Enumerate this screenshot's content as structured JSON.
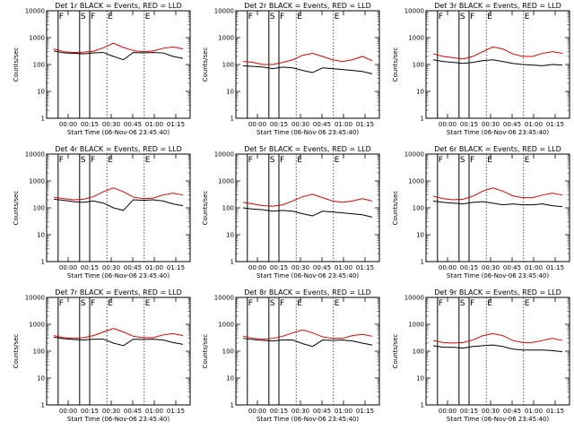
{
  "panels": [
    {
      "title": "Det 1r BLACK = Events, RED = LLD",
      "red": [
        380,
        300,
        280,
        290,
        310,
        420,
        620,
        430,
        330,
        300,
        320,
        400,
        450,
        380
      ],
      "black": [
        320,
        270,
        260,
        250,
        270,
        280,
        200,
        150,
        280,
        270,
        280,
        270,
        200,
        170
      ],
      "markers": [
        {
          "x": -5,
          "type": "S"
        },
        {
          "x": 8,
          "type": "F"
        },
        {
          "x": 23,
          "type": "S"
        },
        {
          "x": 30,
          "type": "F"
        },
        {
          "x": 42,
          "type": "E"
        },
        {
          "x": 68,
          "type": "E"
        }
      ]
    },
    {
      "title": "Det 2r BLACK = Events, RED = LLD",
      "red": [
        130,
        120,
        100,
        100,
        120,
        150,
        220,
        260,
        200,
        150,
        130,
        150,
        200,
        140
      ],
      "black": [
        90,
        85,
        80,
        70,
        80,
        75,
        60,
        50,
        75,
        70,
        65,
        60,
        55,
        45
      ],
      "markers": [
        {
          "x": -5,
          "type": "S"
        },
        {
          "x": 8,
          "type": "F"
        },
        {
          "x": 23,
          "type": "S"
        },
        {
          "x": 30,
          "type": "F"
        },
        {
          "x": 42,
          "type": "E"
        },
        {
          "x": 68,
          "type": "E"
        }
      ]
    },
    {
      "title": "Det 3r BLACK = Events, RED = LLD",
      "red": [
        250,
        200,
        180,
        160,
        200,
        300,
        450,
        380,
        250,
        200,
        200,
        260,
        300,
        260
      ],
      "black": [
        150,
        130,
        120,
        110,
        120,
        140,
        150,
        130,
        110,
        100,
        95,
        90,
        100,
        95
      ],
      "markers": [
        {
          "x": -5,
          "type": "S"
        },
        {
          "x": 8,
          "type": "F"
        },
        {
          "x": 23,
          "type": "S"
        },
        {
          "x": 30,
          "type": "F"
        },
        {
          "x": 42,
          "type": "E"
        },
        {
          "x": 68,
          "type": "E"
        }
      ]
    },
    {
      "title": "Det 4r BLACK = Events, RED = LLD",
      "red": [
        250,
        220,
        200,
        210,
        260,
        400,
        550,
        400,
        250,
        220,
        230,
        300,
        350,
        300
      ],
      "black": [
        210,
        190,
        170,
        160,
        180,
        150,
        100,
        80,
        200,
        190,
        200,
        180,
        140,
        120
      ],
      "markers": [
        {
          "x": -5,
          "type": "S"
        },
        {
          "x": 8,
          "type": "F"
        },
        {
          "x": 23,
          "type": "S"
        },
        {
          "x": 30,
          "type": "F"
        },
        {
          "x": 42,
          "type": "E"
        },
        {
          "x": 68,
          "type": "E"
        }
      ]
    },
    {
      "title": "Det 5r BLACK = Events, RED = LLD",
      "red": [
        160,
        140,
        120,
        115,
        130,
        180,
        260,
        320,
        240,
        180,
        160,
        180,
        220,
        180
      ],
      "black": [
        100,
        90,
        85,
        75,
        80,
        75,
        60,
        50,
        75,
        70,
        65,
        60,
        55,
        45
      ],
      "markers": [
        {
          "x": -5,
          "type": "S"
        },
        {
          "x": 8,
          "type": "F"
        },
        {
          "x": 23,
          "type": "S"
        },
        {
          "x": 30,
          "type": "F"
        },
        {
          "x": 42,
          "type": "E"
        },
        {
          "x": 68,
          "type": "E"
        }
      ]
    },
    {
      "title": "Det 6r BLACK = Events, RED = LLD",
      "red": [
        270,
        220,
        200,
        210,
        270,
        420,
        550,
        420,
        280,
        240,
        240,
        300,
        350,
        300
      ],
      "black": [
        180,
        160,
        150,
        140,
        160,
        170,
        150,
        130,
        140,
        130,
        130,
        140,
        120,
        110
      ],
      "markers": [
        {
          "x": -5,
          "type": "S"
        },
        {
          "x": 8,
          "type": "F"
        },
        {
          "x": 23,
          "type": "S"
        },
        {
          "x": 30,
          "type": "F"
        },
        {
          "x": 42,
          "type": "E"
        },
        {
          "x": 68,
          "type": "E"
        }
      ]
    },
    {
      "title": "Det 7r BLACK = Events, RED = LLD",
      "red": [
        380,
        320,
        300,
        320,
        380,
        520,
        700,
        520,
        360,
        320,
        320,
        400,
        450,
        380
      ],
      "black": [
        330,
        290,
        270,
        260,
        280,
        280,
        200,
        160,
        280,
        270,
        280,
        260,
        210,
        180
      ],
      "markers": [
        {
          "x": -5,
          "type": "S"
        },
        {
          "x": 8,
          "type": "F"
        },
        {
          "x": 23,
          "type": "S"
        },
        {
          "x": 30,
          "type": "F"
        },
        {
          "x": 42,
          "type": "E"
        },
        {
          "x": 68,
          "type": "E"
        }
      ]
    },
    {
      "title": "Det 8r BLACK = Events, RED = LLD",
      "red": [
        360,
        300,
        280,
        300,
        360,
        480,
        620,
        480,
        340,
        300,
        300,
        380,
        420,
        360
      ],
      "black": [
        300,
        270,
        250,
        240,
        260,
        260,
        190,
        150,
        260,
        250,
        260,
        240,
        200,
        170
      ],
      "markers": [
        {
          "x": -5,
          "type": "S"
        },
        {
          "x": 8,
          "type": "F"
        },
        {
          "x": 23,
          "type": "S"
        },
        {
          "x": 30,
          "type": "F"
        },
        {
          "x": 42,
          "type": "E"
        },
        {
          "x": 68,
          "type": "E"
        }
      ]
    },
    {
      "title": "Det 9r BLACK = Events, RED = LLD",
      "red": [
        250,
        210,
        200,
        210,
        260,
        380,
        450,
        380,
        250,
        210,
        210,
        250,
        300,
        250
      ],
      "black": [
        160,
        140,
        140,
        130,
        150,
        160,
        170,
        150,
        120,
        110,
        110,
        110,
        105,
        95
      ],
      "markers": [
        {
          "x": -5,
          "type": "S"
        },
        {
          "x": 8,
          "type": "F"
        },
        {
          "x": 23,
          "type": "S"
        },
        {
          "x": 30,
          "type": "F"
        },
        {
          "x": 42,
          "type": "E"
        },
        {
          "x": 68,
          "type": "E"
        }
      ]
    }
  ],
  "axes": {
    "ylabel": "Counts/sec",
    "xlabel": "Start Time (06-Nov-06 23:45:40)",
    "yticks": [
      {
        "v": 1,
        "label": "1"
      },
      {
        "v": 10,
        "label": "10"
      },
      {
        "v": 100,
        "label": "100"
      },
      {
        "v": 1000,
        "label": "1000"
      },
      {
        "v": 10000,
        "label": "10000"
      }
    ],
    "xticks": [
      {
        "v": 15,
        "label": "00:00"
      },
      {
        "v": 30,
        "label": "00:15"
      },
      {
        "v": 45,
        "label": "00:30"
      },
      {
        "v": 60,
        "label": "00:45"
      },
      {
        "v": 75,
        "label": "01:00"
      },
      {
        "v": 90,
        "label": "01:15"
      }
    ],
    "xrange": [
      0,
      100
    ],
    "yrange": [
      1,
      10000
    ]
  },
  "chart_data": [
    {
      "type": "line",
      "title": "Det 1r BLACK = Events, RED = LLD",
      "xlabel": "Start Time (06-Nov-06 23:45:40)",
      "ylabel": "Counts/sec",
      "yscale": "log",
      "ylim": [
        1,
        10000
      ],
      "series": [
        {
          "name": "RED = LLD",
          "values": [
            380,
            300,
            280,
            290,
            310,
            420,
            620,
            430,
            330,
            300,
            320,
            400,
            450,
            380
          ]
        },
        {
          "name": "BLACK = Events",
          "values": [
            320,
            270,
            260,
            250,
            270,
            280,
            200,
            150,
            280,
            270,
            280,
            270,
            200,
            170
          ]
        }
      ]
    },
    {
      "type": "line",
      "title": "Det 2r BLACK = Events, RED = LLD",
      "xlabel": "Start Time (06-Nov-06 23:45:40)",
      "ylabel": "Counts/sec",
      "yscale": "log",
      "ylim": [
        1,
        10000
      ],
      "series": [
        {
          "name": "RED = LLD",
          "values": [
            130,
            120,
            100,
            100,
            120,
            150,
            220,
            260,
            200,
            150,
            130,
            150,
            200,
            140
          ]
        },
        {
          "name": "BLACK = Events",
          "values": [
            90,
            85,
            80,
            70,
            80,
            75,
            60,
            50,
            75,
            70,
            65,
            60,
            55,
            45
          ]
        }
      ]
    },
    {
      "type": "line",
      "title": "Det 3r BLACK = Events, RED = LLD",
      "xlabel": "Start Time (06-Nov-06 23:45:40)",
      "ylabel": "Counts/sec",
      "yscale": "log",
      "ylim": [
        1,
        10000
      ],
      "series": [
        {
          "name": "RED = LLD",
          "values": [
            250,
            200,
            180,
            160,
            200,
            300,
            450,
            380,
            250,
            200,
            200,
            260,
            300,
            260
          ]
        },
        {
          "name": "BLACK = Events",
          "values": [
            150,
            130,
            120,
            110,
            120,
            140,
            150,
            130,
            110,
            100,
            95,
            90,
            100,
            95
          ]
        }
      ]
    },
    {
      "type": "line",
      "title": "Det 4r BLACK = Events, RED = LLD",
      "xlabel": "Start Time (06-Nov-06 23:45:40)",
      "ylabel": "Counts/sec",
      "yscale": "log",
      "ylim": [
        1,
        10000
      ],
      "series": [
        {
          "name": "RED = LLD",
          "values": [
            250,
            220,
            200,
            210,
            260,
            400,
            550,
            400,
            250,
            220,
            230,
            300,
            350,
            300
          ]
        },
        {
          "name": "BLACK = Events",
          "values": [
            210,
            190,
            170,
            160,
            180,
            150,
            100,
            80,
            200,
            190,
            200,
            180,
            140,
            120
          ]
        }
      ]
    },
    {
      "type": "line",
      "title": "Det 5r BLACK = Events, RED = LLD",
      "xlabel": "Start Time (06-Nov-06 23:45:40)",
      "ylabel": "Counts/sec",
      "yscale": "log",
      "ylim": [
        1,
        10000
      ],
      "series": [
        {
          "name": "RED = LLD",
          "values": [
            160,
            140,
            120,
            115,
            130,
            180,
            260,
            320,
            240,
            180,
            160,
            180,
            220,
            180
          ]
        },
        {
          "name": "BLACK = Events",
          "values": [
            100,
            90,
            85,
            75,
            80,
            75,
            60,
            50,
            75,
            70,
            65,
            60,
            55,
            45
          ]
        }
      ]
    },
    {
      "type": "line",
      "title": "Det 6r BLACK = Events, RED = LLD",
      "xlabel": "Start Time (06-Nov-06 23:45:40)",
      "ylabel": "Counts/sec",
      "yscale": "log",
      "ylim": [
        1,
        10000
      ],
      "series": [
        {
          "name": "RED = LLD",
          "values": [
            270,
            220,
            200,
            210,
            270,
            420,
            550,
            420,
            280,
            240,
            240,
            300,
            350,
            300
          ]
        },
        {
          "name": "BLACK = Events",
          "values": [
            180,
            160,
            150,
            140,
            160,
            170,
            150,
            130,
            140,
            130,
            130,
            140,
            120,
            110
          ]
        }
      ]
    },
    {
      "type": "line",
      "title": "Det 7r BLACK = Events, RED = LLD",
      "xlabel": "Start Time (06-Nov-06 23:45:40)",
      "ylabel": "Counts/sec",
      "yscale": "log",
      "ylim": [
        1,
        10000
      ],
      "series": [
        {
          "name": "RED = LLD",
          "values": [
            380,
            320,
            300,
            320,
            380,
            520,
            700,
            520,
            360,
            320,
            320,
            400,
            450,
            380
          ]
        },
        {
          "name": "BLACK = Events",
          "values": [
            330,
            290,
            270,
            260,
            280,
            280,
            200,
            160,
            280,
            270,
            280,
            260,
            210,
            180
          ]
        }
      ]
    },
    {
      "type": "line",
      "title": "Det 8r BLACK = Events, RED = LLD",
      "xlabel": "Start Time (06-Nov-06 23:45:40)",
      "ylabel": "Counts/sec",
      "yscale": "log",
      "ylim": [
        1,
        10000
      ],
      "series": [
        {
          "name": "RED = LLD",
          "values": [
            360,
            300,
            280,
            300,
            360,
            480,
            620,
            480,
            340,
            300,
            300,
            380,
            420,
            360
          ]
        },
        {
          "name": "BLACK = Events",
          "values": [
            300,
            270,
            250,
            240,
            260,
            260,
            190,
            150,
            260,
            250,
            260,
            240,
            200,
            170
          ]
        }
      ]
    },
    {
      "type": "line",
      "title": "Det 9r BLACK = Events, RED = LLD",
      "xlabel": "Start Time (06-Nov-06 23:45:40)",
      "ylabel": "Counts/sec",
      "yscale": "log",
      "ylim": [
        1,
        10000
      ],
      "series": [
        {
          "name": "RED = LLD",
          "values": [
            250,
            210,
            200,
            210,
            260,
            380,
            450,
            380,
            250,
            210,
            210,
            250,
            300,
            250
          ]
        },
        {
          "name": "BLACK = Events",
          "values": [
            160,
            140,
            140,
            130,
            150,
            160,
            170,
            150,
            120,
            110,
            110,
            110,
            105,
            95
          ]
        }
      ]
    }
  ]
}
